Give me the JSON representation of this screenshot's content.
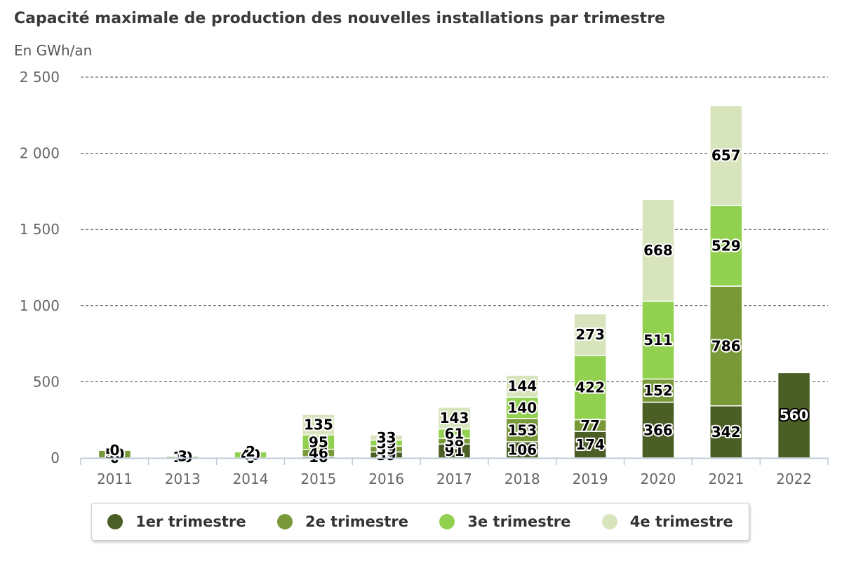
{
  "chart_data": {
    "type": "bar",
    "stacked": true,
    "title": "Capacité maximale de production des nouvelles installations par trimestre",
    "subtitle": "En GWh/an",
    "categories": [
      "2011",
      "2013",
      "2014",
      "2015",
      "2016",
      "2017",
      "2018",
      "2019",
      "2020",
      "2021",
      "2022"
    ],
    "series": [
      {
        "name": "1er trimestre",
        "color": "#4a5e25",
        "values": [
          0,
          0,
          0,
          10,
          39,
          91,
          106,
          174,
          366,
          342,
          560
        ]
      },
      {
        "name": "2e trimestre",
        "color": "#799838",
        "values": [
          50,
          10,
          0,
          46,
          39,
          38,
          153,
          77,
          152,
          786,
          null
        ]
      },
      {
        "name": "3e trimestre",
        "color": "#92d050",
        "values": [
          0,
          0,
          40,
          95,
          39,
          61,
          140,
          422,
          511,
          529,
          null
        ]
      },
      {
        "name": "4e trimestre",
        "color": "#d7e4bc",
        "values": [
          0,
          3,
          2,
          135,
          33,
          143,
          144,
          273,
          668,
          657,
          null
        ]
      }
    ],
    "y_ticks": [
      "0",
      "500",
      "1 000",
      "1 500",
      "2 000",
      "2 500"
    ],
    "ylim": [
      0,
      2500
    ],
    "grid": true,
    "grid_style": "dashed",
    "legend_position": "bottom"
  }
}
